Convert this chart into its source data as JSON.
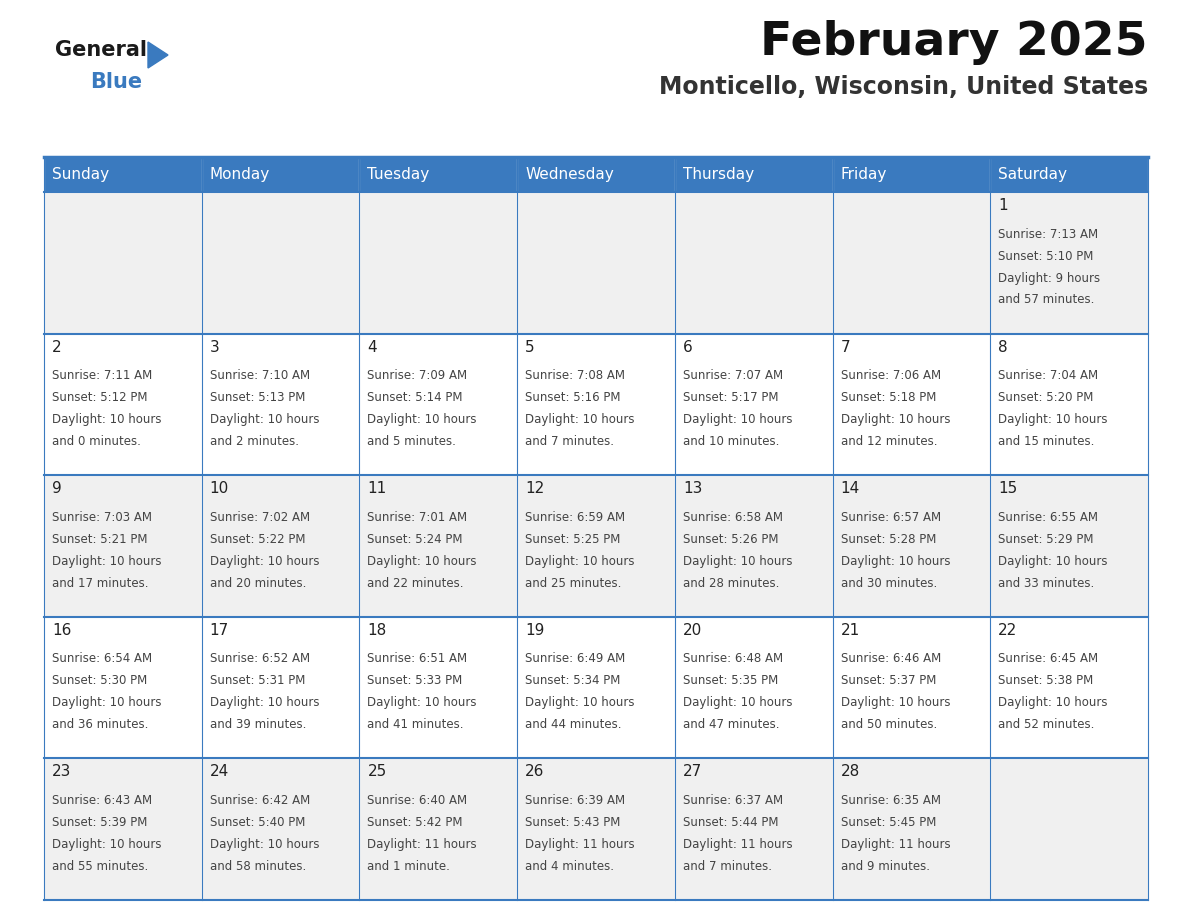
{
  "title": "February 2025",
  "subtitle": "Monticello, Wisconsin, United States",
  "header_color": "#3a7abf",
  "header_text_color": "#ffffff",
  "cell_bg_color": "#f0f0f0",
  "cell_bg_white": "#ffffff",
  "border_color": "#3a7abf",
  "days_of_week": [
    "Sunday",
    "Monday",
    "Tuesday",
    "Wednesday",
    "Thursday",
    "Friday",
    "Saturday"
  ],
  "weeks": [
    [
      {
        "day": "",
        "sunrise": "",
        "sunset": "",
        "daylight_line1": "",
        "daylight_line2": ""
      },
      {
        "day": "",
        "sunrise": "",
        "sunset": "",
        "daylight_line1": "",
        "daylight_line2": ""
      },
      {
        "day": "",
        "sunrise": "",
        "sunset": "",
        "daylight_line1": "",
        "daylight_line2": ""
      },
      {
        "day": "",
        "sunrise": "",
        "sunset": "",
        "daylight_line1": "",
        "daylight_line2": ""
      },
      {
        "day": "",
        "sunrise": "",
        "sunset": "",
        "daylight_line1": "",
        "daylight_line2": ""
      },
      {
        "day": "",
        "sunrise": "",
        "sunset": "",
        "daylight_line1": "",
        "daylight_line2": ""
      },
      {
        "day": "1",
        "sunrise": "7:13 AM",
        "sunset": "5:10 PM",
        "daylight_line1": "Daylight: 9 hours",
        "daylight_line2": "and 57 minutes."
      }
    ],
    [
      {
        "day": "2",
        "sunrise": "7:11 AM",
        "sunset": "5:12 PM",
        "daylight_line1": "Daylight: 10 hours",
        "daylight_line2": "and 0 minutes."
      },
      {
        "day": "3",
        "sunrise": "7:10 AM",
        "sunset": "5:13 PM",
        "daylight_line1": "Daylight: 10 hours",
        "daylight_line2": "and 2 minutes."
      },
      {
        "day": "4",
        "sunrise": "7:09 AM",
        "sunset": "5:14 PM",
        "daylight_line1": "Daylight: 10 hours",
        "daylight_line2": "and 5 minutes."
      },
      {
        "day": "5",
        "sunrise": "7:08 AM",
        "sunset": "5:16 PM",
        "daylight_line1": "Daylight: 10 hours",
        "daylight_line2": "and 7 minutes."
      },
      {
        "day": "6",
        "sunrise": "7:07 AM",
        "sunset": "5:17 PM",
        "daylight_line1": "Daylight: 10 hours",
        "daylight_line2": "and 10 minutes."
      },
      {
        "day": "7",
        "sunrise": "7:06 AM",
        "sunset": "5:18 PM",
        "daylight_line1": "Daylight: 10 hours",
        "daylight_line2": "and 12 minutes."
      },
      {
        "day": "8",
        "sunrise": "7:04 AM",
        "sunset": "5:20 PM",
        "daylight_line1": "Daylight: 10 hours",
        "daylight_line2": "and 15 minutes."
      }
    ],
    [
      {
        "day": "9",
        "sunrise": "7:03 AM",
        "sunset": "5:21 PM",
        "daylight_line1": "Daylight: 10 hours",
        "daylight_line2": "and 17 minutes."
      },
      {
        "day": "10",
        "sunrise": "7:02 AM",
        "sunset": "5:22 PM",
        "daylight_line1": "Daylight: 10 hours",
        "daylight_line2": "and 20 minutes."
      },
      {
        "day": "11",
        "sunrise": "7:01 AM",
        "sunset": "5:24 PM",
        "daylight_line1": "Daylight: 10 hours",
        "daylight_line2": "and 22 minutes."
      },
      {
        "day": "12",
        "sunrise": "6:59 AM",
        "sunset": "5:25 PM",
        "daylight_line1": "Daylight: 10 hours",
        "daylight_line2": "and 25 minutes."
      },
      {
        "day": "13",
        "sunrise": "6:58 AM",
        "sunset": "5:26 PM",
        "daylight_line1": "Daylight: 10 hours",
        "daylight_line2": "and 28 minutes."
      },
      {
        "day": "14",
        "sunrise": "6:57 AM",
        "sunset": "5:28 PM",
        "daylight_line1": "Daylight: 10 hours",
        "daylight_line2": "and 30 minutes."
      },
      {
        "day": "15",
        "sunrise": "6:55 AM",
        "sunset": "5:29 PM",
        "daylight_line1": "Daylight: 10 hours",
        "daylight_line2": "and 33 minutes."
      }
    ],
    [
      {
        "day": "16",
        "sunrise": "6:54 AM",
        "sunset": "5:30 PM",
        "daylight_line1": "Daylight: 10 hours",
        "daylight_line2": "and 36 minutes."
      },
      {
        "day": "17",
        "sunrise": "6:52 AM",
        "sunset": "5:31 PM",
        "daylight_line1": "Daylight: 10 hours",
        "daylight_line2": "and 39 minutes."
      },
      {
        "day": "18",
        "sunrise": "6:51 AM",
        "sunset": "5:33 PM",
        "daylight_line1": "Daylight: 10 hours",
        "daylight_line2": "and 41 minutes."
      },
      {
        "day": "19",
        "sunrise": "6:49 AM",
        "sunset": "5:34 PM",
        "daylight_line1": "Daylight: 10 hours",
        "daylight_line2": "and 44 minutes."
      },
      {
        "day": "20",
        "sunrise": "6:48 AM",
        "sunset": "5:35 PM",
        "daylight_line1": "Daylight: 10 hours",
        "daylight_line2": "and 47 minutes."
      },
      {
        "day": "21",
        "sunrise": "6:46 AM",
        "sunset": "5:37 PM",
        "daylight_line1": "Daylight: 10 hours",
        "daylight_line2": "and 50 minutes."
      },
      {
        "day": "22",
        "sunrise": "6:45 AM",
        "sunset": "5:38 PM",
        "daylight_line1": "Daylight: 10 hours",
        "daylight_line2": "and 52 minutes."
      }
    ],
    [
      {
        "day": "23",
        "sunrise": "6:43 AM",
        "sunset": "5:39 PM",
        "daylight_line1": "Daylight: 10 hours",
        "daylight_line2": "and 55 minutes."
      },
      {
        "day": "24",
        "sunrise": "6:42 AM",
        "sunset": "5:40 PM",
        "daylight_line1": "Daylight: 10 hours",
        "daylight_line2": "and 58 minutes."
      },
      {
        "day": "25",
        "sunrise": "6:40 AM",
        "sunset": "5:42 PM",
        "daylight_line1": "Daylight: 11 hours",
        "daylight_line2": "and 1 minute."
      },
      {
        "day": "26",
        "sunrise": "6:39 AM",
        "sunset": "5:43 PM",
        "daylight_line1": "Daylight: 11 hours",
        "daylight_line2": "and 4 minutes."
      },
      {
        "day": "27",
        "sunrise": "6:37 AM",
        "sunset": "5:44 PM",
        "daylight_line1": "Daylight: 11 hours",
        "daylight_line2": "and 7 minutes."
      },
      {
        "day": "28",
        "sunrise": "6:35 AM",
        "sunset": "5:45 PM",
        "daylight_line1": "Daylight: 11 hours",
        "daylight_line2": "and 9 minutes."
      },
      {
        "day": "",
        "sunrise": "",
        "sunset": "",
        "daylight_line1": "",
        "daylight_line2": ""
      }
    ]
  ]
}
